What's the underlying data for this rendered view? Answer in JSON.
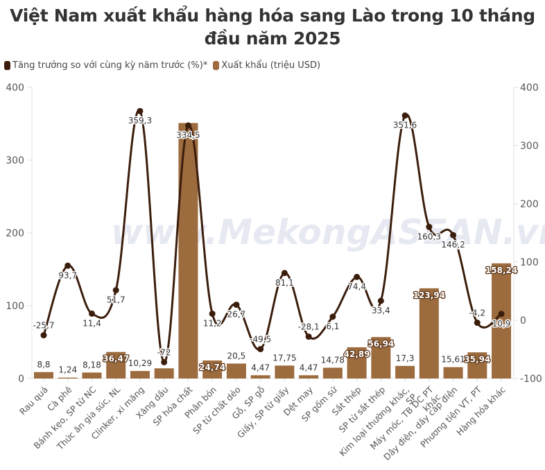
{
  "title": "Việt Nam xuất khẩu hàng hóa sang Lào trong 10 tháng đầu năm 2025",
  "title_lines": [
    "Việt Nam xuất khẩu hàng hóa sang Lào trong 10 tháng",
    "đầu năm 2025"
  ],
  "legend": [
    {
      "label": "Tăng trưởng so với cùng kỳ năm trước (%)*",
      "color": "#3b1d0c"
    },
    {
      "label": "Xuất khẩu (triệu USD)",
      "color": "#9c6b3e"
    }
  ],
  "watermark": "www.MekongASEAN.vn",
  "colors": {
    "line": "#3b1d0c",
    "bar": "#9c6b3e",
    "grid": "#e6e6e6",
    "axis_text": "#555555"
  },
  "chart_data": {
    "type": "bar+line",
    "title": "Việt Nam xuất khẩu hàng hóa sang Lào trong 10 tháng đầu năm 2025",
    "xlabel": "",
    "categories": [
      "Rau quả",
      "Cà phê",
      "Bánh kẹo, SP từ NC",
      "Thức ăn gia súc, NL",
      "Clinker, xi măng",
      "Xăng dầu",
      "SP hóa chất",
      "Phân bón",
      "SP từ chất dẻo",
      "Gỗ, SP gỗ",
      "Giấy, SP từ giấy",
      "Dệt may",
      "SP gốm sứ",
      "Sắt thép",
      "SP từ sắt thép",
      "Kim loại thường khác, SP",
      "Máy móc, TB DC PT khác",
      "Dây điện, dây cáp điện",
      "Phương tiện VT, PT",
      "Hàng hóa khác"
    ],
    "category_lines": [
      [
        "Rau quả"
      ],
      [
        "Cà phê"
      ],
      [
        "Bánh kẹo, SP từ NC"
      ],
      [
        "Thức ăn gia súc, NL"
      ],
      [
        "Clinker, xi măng"
      ],
      [
        "Xăng dầu"
      ],
      [
        "SP hóa chất"
      ],
      [
        "Phân bón"
      ],
      [
        "SP từ chất dẻo"
      ],
      [
        "Gỗ, SP gỗ"
      ],
      [
        "Giấy, SP từ giấy"
      ],
      [
        "Dệt may"
      ],
      [
        "SP gốm sứ"
      ],
      [
        "Sắt thép"
      ],
      [
        "SP từ sắt thép"
      ],
      [
        "Kim loại thường khác,",
        "SP"
      ],
      [
        "Máy móc, TB DC PT",
        "khác"
      ],
      [
        "Dây điện, dây cáp điện"
      ],
      [
        "Phương tiện VT, PT"
      ],
      [
        "Hàng hóa khác"
      ]
    ],
    "series": [
      {
        "name": "Xuất khẩu (triệu USD)",
        "type": "bar",
        "axis": "left",
        "color": "#9c6b3e",
        "values": [
          8.8,
          1.24,
          8.18,
          36.47,
          10.29,
          14,
          351,
          24.74,
          20.5,
          4.47,
          17.75,
          4.47,
          14.78,
          42.89,
          56.94,
          17.3,
          123.94,
          15.61,
          35.94,
          158.24
        ],
        "labels": [
          "8,8",
          "1,24",
          "8,18",
          "36,47",
          "10,29",
          "",
          "",
          "24,74",
          "20,5",
          "4,47",
          "17,75",
          "4,47",
          "14,78",
          "42,89",
          "56,94",
          "17,3",
          "123,94",
          "15,61",
          "35,94",
          "158,24"
        ],
        "label_inside": [
          false,
          false,
          false,
          true,
          false,
          false,
          false,
          true,
          false,
          false,
          false,
          false,
          false,
          true,
          true,
          false,
          true,
          false,
          true,
          true
        ]
      },
      {
        "name": "Tăng trưởng so với cùng kỳ năm trước (%)*",
        "type": "line",
        "axis": "right",
        "color": "#3b1d0c",
        "values": [
          -25.7,
          93.7,
          11.4,
          51.7,
          359.3,
          -72,
          334.5,
          11.2,
          26.7,
          -49.5,
          81.1,
          -28.1,
          6.1,
          74.4,
          33.4,
          351.6,
          160.3,
          146.2,
          -4.2,
          10.9
        ],
        "labels": [
          "-25,7",
          "93,7",
          "11,4",
          "51,7",
          "359,3",
          "-72",
          "334,5",
          "11,2",
          "26,7",
          "-49,5",
          "81,1",
          "-28,1",
          "6,1",
          "74,4",
          "33,4",
          "351,6",
          "160,3",
          "146,2",
          "-4,2",
          "10,9"
        ],
        "label_pos": [
          "above",
          "below",
          "below",
          "below",
          "below",
          "above",
          "below",
          "below",
          "below",
          "above",
          "below",
          "above",
          "below",
          "below",
          "below",
          "below",
          "below",
          "below",
          "above",
          "below"
        ]
      }
    ],
    "y_left": {
      "min": 0,
      "max": 400,
      "ticks": [
        0,
        100,
        200,
        300,
        400
      ]
    },
    "y_right": {
      "min": -100,
      "max": 400,
      "ticks": [
        -100,
        0,
        100,
        200,
        300,
        400
      ]
    },
    "grid": false,
    "legend_position": "top-left"
  }
}
